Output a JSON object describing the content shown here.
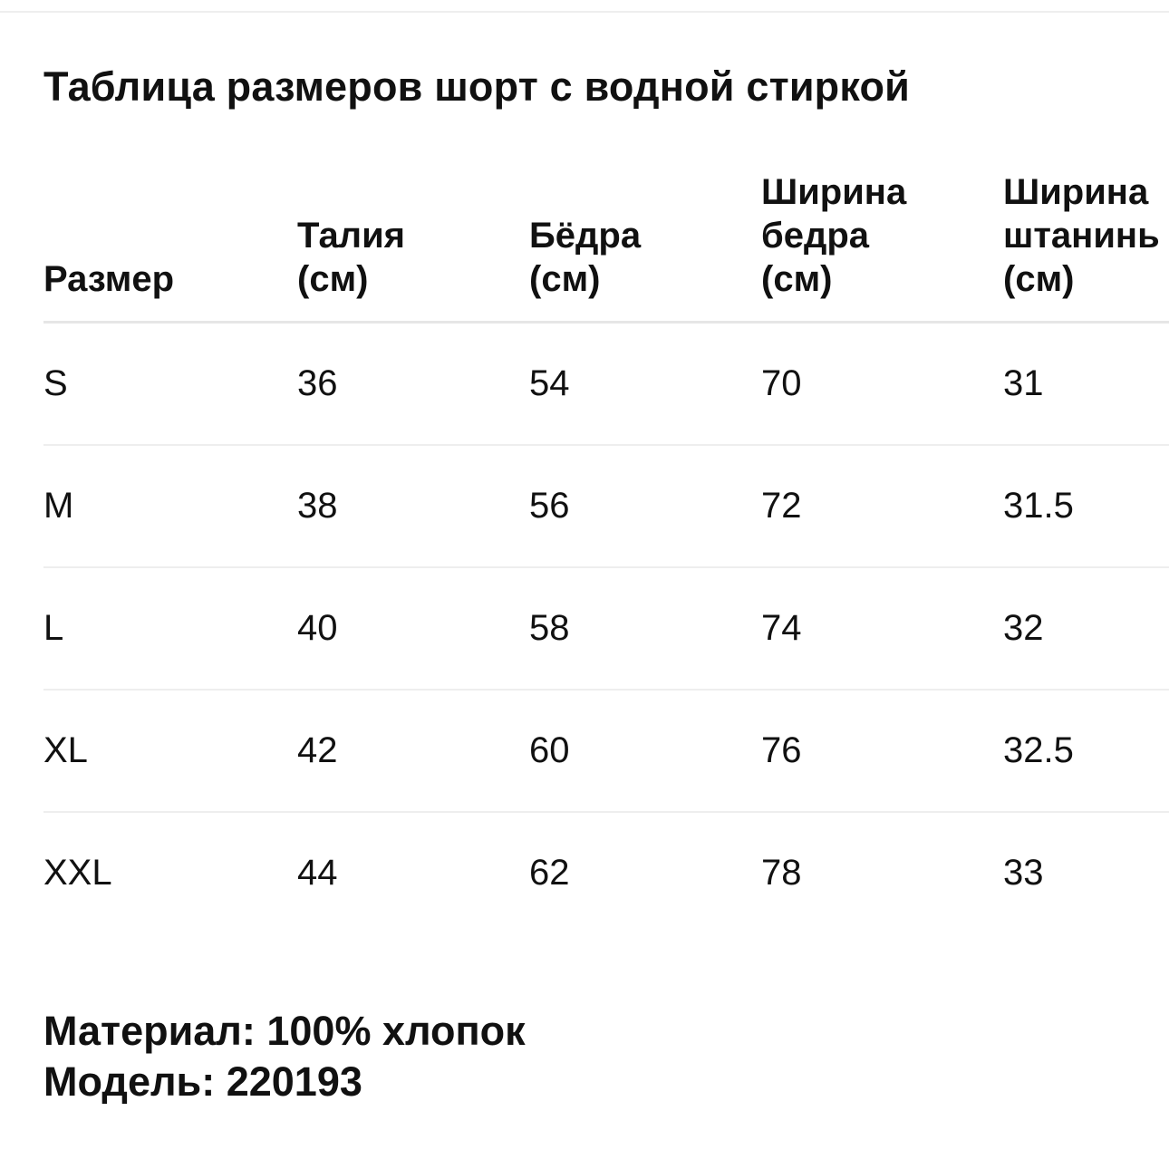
{
  "title": "Таблица размеров шорт с водной стиркой",
  "table": {
    "headers": [
      "Размер",
      "Талия\n(см)",
      "Бёдра\n(см)",
      "Ширина\nбедра\n(см)",
      "Ширина\nштанинь\n(см)"
    ],
    "rows": [
      [
        "S",
        "36",
        "54",
        "70",
        "31"
      ],
      [
        "M",
        "38",
        "56",
        "72",
        "31.5"
      ],
      [
        "L",
        "40",
        "58",
        "74",
        "32"
      ],
      [
        "XL",
        "42",
        "60",
        "76",
        "32.5"
      ],
      [
        "XXL",
        "44",
        "62",
        "78",
        "33"
      ]
    ]
  },
  "material": "Материал: 100% хлопок",
  "model": "Модель: 220193"
}
